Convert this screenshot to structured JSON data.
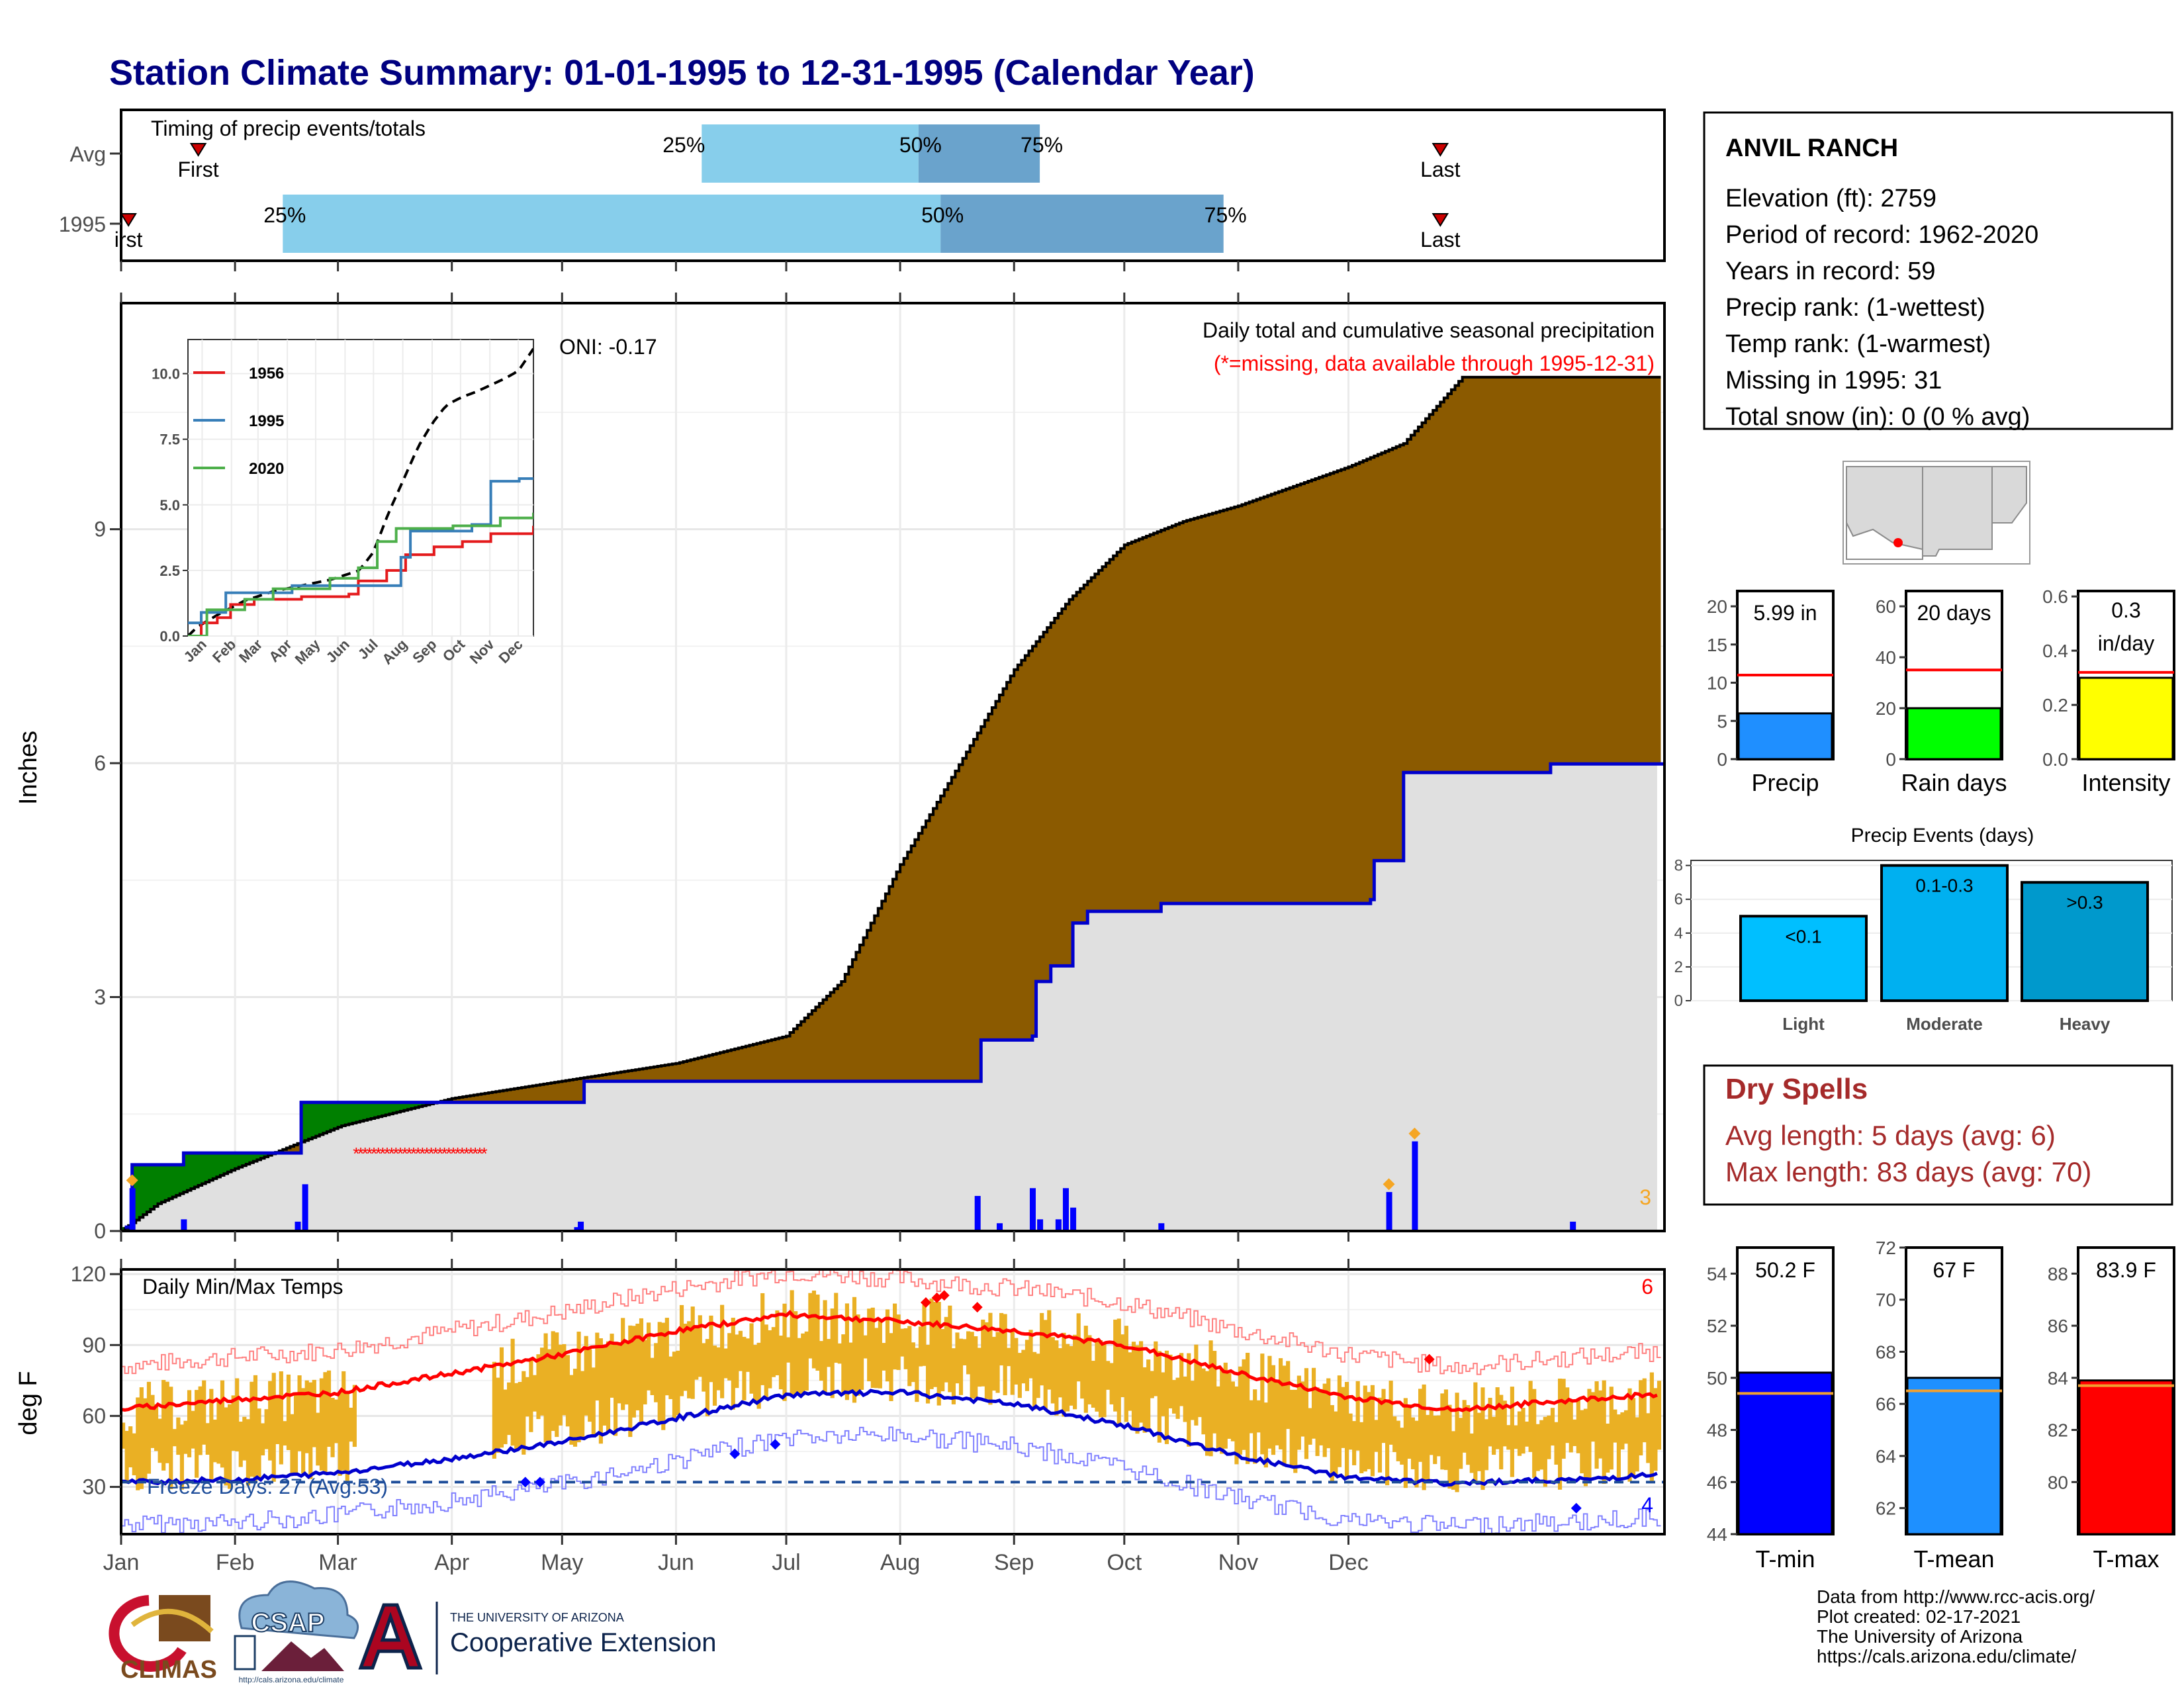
{
  "title": "Station Climate Summary: 01-01-1995 to 12-31-1995 (Calendar Year)",
  "timing_panel": {
    "label": "Timing of precip events/totals",
    "rows": [
      {
        "name": "Avg",
        "first": "First",
        "last": "Last",
        "first_doy": 21,
        "last_doy": 359,
        "p25": 158,
        "p50": 217,
        "p75": 250
      },
      {
        "name": "1995",
        "first": "irst",
        "last": "Last",
        "first_doy": 2,
        "last_doy": 359,
        "p25": 44,
        "p50": 223,
        "p75": 300
      }
    ],
    "percent_labels": [
      "25%",
      "50%",
      "75%"
    ]
  },
  "precip_panel": {
    "header_line1": "Daily total and cumulative seasonal precipitation",
    "header_line2": "(*=missing, data available through 1995-12-31)",
    "oni": "ONI: -0.17",
    "ylabel": "Inches",
    "yticks": [
      "0",
      "3",
      "6",
      "9"
    ],
    "corner_count": "3"
  },
  "inset": {
    "yticks": [
      "0.0",
      "2.5",
      "5.0",
      "7.5",
      "10.0"
    ],
    "xticks": [
      "Jan",
      "Feb",
      "Mar",
      "Apr",
      "May",
      "Jun",
      "Jul",
      "Aug",
      "Sep",
      "Oct",
      "Nov",
      "Dec"
    ],
    "legend": [
      {
        "name": "1956",
        "color": "#e41a1c"
      },
      {
        "name": "1995",
        "color": "#377eb8"
      },
      {
        "name": "2020",
        "color": "#4daf4a"
      }
    ]
  },
  "temp_panel": {
    "title": "Daily Min/Max Temps",
    "ylabel": "deg F",
    "yticks": [
      "30",
      "60",
      "90",
      "120"
    ],
    "freeze_label": "Freeze Days: 27 (Avg:53)",
    "hot_count": "6",
    "cold_count": "4"
  },
  "months": [
    "Jan",
    "Feb",
    "Mar",
    "Apr",
    "May",
    "Jun",
    "Jul",
    "Aug",
    "Sep",
    "Oct",
    "Nov",
    "Dec"
  ],
  "station": {
    "name": "ANVIL RANCH",
    "lines": [
      "Elevation (ft): 2759",
      "Period of record: 1962-2020",
      "Years in record: 59",
      "Precip rank:  (1-wettest)",
      "Temp rank:  (1-warmest)",
      "Missing in 1995: 31",
      "Total snow (in): 0 (0 % avg)"
    ]
  },
  "stat_bars": [
    {
      "label": "Precip",
      "value_text": "5.99 in",
      "value": 5.99,
      "avg": 11.0,
      "ymax": 22,
      "yticks": [
        "0",
        "5",
        "10",
        "15",
        "20"
      ],
      "color": "#1f8fff"
    },
    {
      "label": "Rain days",
      "value_text": "20 days",
      "value": 20,
      "avg": 35,
      "ymax": 66,
      "yticks": [
        "0",
        "20",
        "40",
        "60"
      ],
      "color": "#00ff00"
    },
    {
      "label": "Intensity",
      "value_text": "0.3 in/day",
      "value": 0.3,
      "avg": 0.32,
      "ymax": 0.62,
      "yticks": [
        "0.0",
        "0.2",
        "0.4",
        "0.6"
      ],
      "color": "#ffff00"
    }
  ],
  "precip_events": {
    "title": "Precip Events (days)",
    "categories": [
      "Light",
      "Moderate",
      "Heavy"
    ],
    "range_labels": [
      "<0.1",
      "0.1-0.3",
      ">0.3"
    ],
    "values": [
      5,
      8,
      7
    ],
    "yticks": [
      "0",
      "2",
      "4",
      "6",
      "8"
    ],
    "colors": [
      "#00bfff",
      "#00b0f0",
      "#0099cc"
    ]
  },
  "dry_spells": {
    "title": "Dry Spells",
    "line1": "Avg length: 5 days (avg: 6)",
    "line2": "Max length: 83 days (avg: 70)"
  },
  "temp_bars": [
    {
      "label": "T-min",
      "value_text": "50.2 F",
      "value": 50.2,
      "avg": 49.4,
      "ymin": 44,
      "ymax": 55,
      "yticks": [
        "44",
        "46",
        "48",
        "50",
        "52",
        "54"
      ],
      "color": "#0000ff"
    },
    {
      "label": "T-mean",
      "value_text": "67 F",
      "value": 67.0,
      "avg": 66.5,
      "ymin": 61,
      "ymax": 72,
      "yticks": [
        "62",
        "64",
        "66",
        "68",
        "70",
        "72"
      ],
      "color": "#1e90ff"
    },
    {
      "label": "T-max",
      "value_text": "83.9 F",
      "value": 83.9,
      "avg": 83.7,
      "ymin": 78,
      "ymax": 89,
      "yticks": [
        "80",
        "82",
        "84",
        "86",
        "88"
      ],
      "color": "#ff0000"
    }
  ],
  "footer": {
    "lines": [
      "Data from http://www.rcc-acis.org/",
      "Plot created: 02-17-2021",
      "The University of Arizona",
      "https://cals.arizona.edu/climate/"
    ]
  },
  "logos": {
    "climas": "CLIMAS",
    "csap": "CSAP",
    "csap_url": "http://cals.arizona.edu/climate",
    "ua_small": "THE UNIVERSITY OF ARIZONA",
    "ua_big": "Cooperative Extension"
  },
  "chart_data": [
    {
      "type": "area",
      "title": "Daily total and cumulative seasonal precipitation",
      "ylabel": "Inches",
      "ylim": [
        0,
        11.9
      ],
      "x_units": "day of year (1995)",
      "series": [
        {
          "name": "1995",
          "points": [
            [
              1,
              0.05
            ],
            [
              3,
              0.85
            ],
            [
              17,
              1.0
            ],
            [
              48,
              1.0
            ],
            [
              49,
              1.65
            ],
            [
              125,
              1.65
            ],
            [
              126,
              1.92
            ],
            [
              233,
              1.92
            ],
            [
              234,
              2.45
            ],
            [
              248,
              2.5
            ],
            [
              249,
              3.2
            ],
            [
              253,
              3.4
            ],
            [
              259,
              3.95
            ],
            [
              263,
              4.1
            ],
            [
              283,
              4.2
            ],
            [
              340,
              4.25
            ],
            [
              341,
              4.75
            ],
            [
              348,
              4.75
            ],
            [
              349,
              5.88
            ],
            [
              388,
              5.88
            ],
            [
              389,
              5.99
            ],
            [
              420,
              5.99
            ]
          ]
        }
      ],
      "avg_cumulative": [
        [
          0,
          0
        ],
        [
          10,
          0.35
        ],
        [
          31,
          0.8
        ],
        [
          60,
          1.35
        ],
        [
          90,
          1.7
        ],
        [
          121,
          1.93
        ],
        [
          151,
          2.15
        ],
        [
          181,
          2.5
        ],
        [
          196,
          3.2
        ],
        [
          212,
          4.7
        ],
        [
          227,
          5.9
        ],
        [
          243,
          7.2
        ],
        [
          258,
          8.1
        ],
        [
          273,
          8.8
        ],
        [
          289,
          9.1
        ],
        [
          304,
          9.3
        ],
        [
          319,
          9.55
        ],
        [
          334,
          9.8
        ],
        [
          349,
          10.1
        ],
        [
          365,
          10.95
        ]
      ],
      "daily_bars": [
        [
          3,
          0.55
        ],
        [
          17,
          0.15
        ],
        [
          48,
          0.12
        ],
        [
          50,
          0.6
        ],
        [
          124,
          0.05
        ],
        [
          125,
          0.12
        ],
        [
          233,
          0.45
        ],
        [
          239,
          0.1
        ],
        [
          248,
          0.55
        ],
        [
          250,
          0.15
        ],
        [
          255,
          0.15
        ],
        [
          257,
          0.55
        ],
        [
          259,
          0.3
        ],
        [
          283,
          0.1
        ],
        [
          345,
          0.5
        ],
        [
          352,
          1.15
        ],
        [
          395,
          0.12
        ]
      ],
      "missing_range": [
        64,
        100
      ]
    },
    {
      "type": "line",
      "title": "Daily Min/Max Temps",
      "ylabel": "deg F",
      "ylim": [
        10,
        122
      ],
      "avg_max": [
        [
          0,
          63
        ],
        [
          31,
          67
        ],
        [
          59,
          70
        ],
        [
          90,
          78
        ],
        [
          120,
          86
        ],
        [
          151,
          96
        ],
        [
          181,
          103
        ],
        [
          212,
          100
        ],
        [
          243,
          96
        ],
        [
          273,
          90
        ],
        [
          304,
          78
        ],
        [
          334,
          68
        ],
        [
          365,
          62
        ]
      ],
      "avg_min": [
        [
          0,
          32
        ],
        [
          31,
          33
        ],
        [
          59,
          36
        ],
        [
          90,
          42
        ],
        [
          120,
          49
        ],
        [
          151,
          59
        ],
        [
          181,
          69
        ],
        [
          212,
          70
        ],
        [
          243,
          65
        ],
        [
          273,
          56
        ],
        [
          304,
          43
        ],
        [
          334,
          34
        ],
        [
          365,
          31
        ]
      ],
      "freeze_line": 32
    }
  ]
}
